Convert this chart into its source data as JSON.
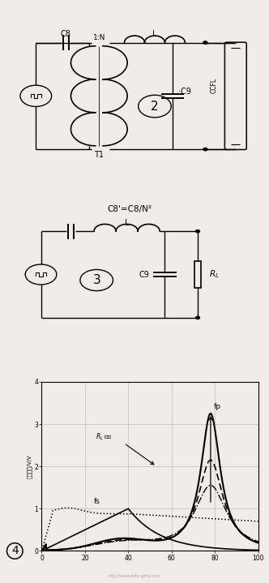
{
  "bg_color": "#f0ede8",
  "graph_ylabel": "电压增益/V/V",
  "graph_yticks_labels": [
    "0",
    "1",
    "2",
    "3",
    "4"
  ],
  "graph_xticks_labels": [
    "0",
    "20",
    "40",
    "60",
    "80",
    "100"
  ],
  "graph_ylim": [
    0,
    4
  ],
  "graph_xlim": [
    0,
    100
  ],
  "annotation_RL": "R_L 增大",
  "annotation_fs": "fs",
  "annotation_fp": "fp",
  "fs_val": 40,
  "fp_val": 78,
  "label2": "2",
  "label3": "3",
  "label4": "4",
  "watermark": "http://www.elito-gdtq.com",
  "c8_label": "C8",
  "c8p_label": "C8'=C8/N²",
  "c9_label": "C9",
  "l_label": "L",
  "t1_label": "T1",
  "tr_ratio": "1:N",
  "rl_label": "R_L",
  "ccfl_label": "CCFL"
}
